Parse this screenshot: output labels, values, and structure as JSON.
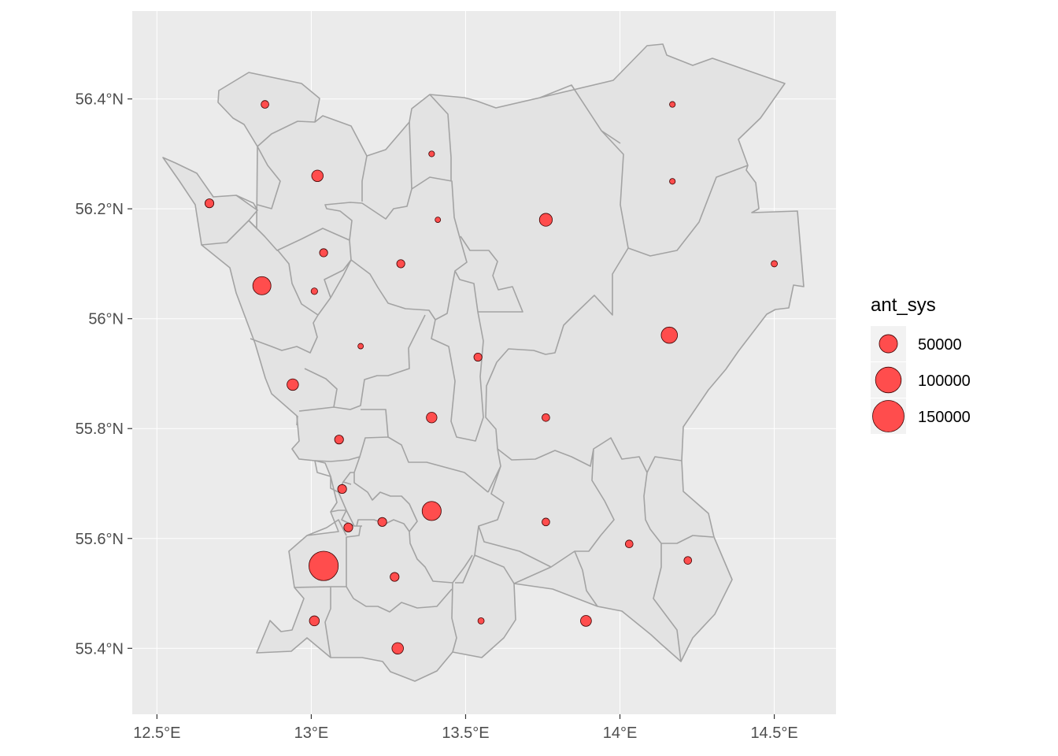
{
  "chart_data": {
    "type": "scatter",
    "map": true,
    "title": "",
    "xlabel": "",
    "ylabel": "",
    "xlim": [
      12.42,
      14.7
    ],
    "ylim": [
      55.28,
      56.56
    ],
    "grid": true,
    "legend_placement": "right",
    "x_ticks": [
      {
        "value": 12.5,
        "label": "12.5°E"
      },
      {
        "value": 13.0,
        "label": "13°E"
      },
      {
        "value": 13.5,
        "label": "13.5°E"
      },
      {
        "value": 14.0,
        "label": "14°E"
      },
      {
        "value": 14.5,
        "label": "14.5°E"
      }
    ],
    "y_ticks": [
      {
        "value": 55.4,
        "label": "55.4°N"
      },
      {
        "value": 55.6,
        "label": "55.6°N"
      },
      {
        "value": 55.8,
        "label": "55.8°N"
      },
      {
        "value": 56.0,
        "label": "56°N"
      },
      {
        "value": 56.2,
        "label": "56.2°N"
      },
      {
        "value": 56.4,
        "label": "56.4°N"
      }
    ],
    "legend": {
      "title": "ant_sys",
      "entries": [
        {
          "value": 50000,
          "label": "50000"
        },
        {
          "value": 100000,
          "label": "100000"
        },
        {
          "value": 150000,
          "label": "150000"
        }
      ]
    },
    "colors": {
      "panel_bg": "#ebebeb",
      "grid": "#ffffff",
      "region_fill": "#e3e3e3",
      "region_stroke": "#a3a3a3",
      "point_fill": "#ff4d4d",
      "point_stroke": "#3d0000",
      "axis_text": "#4d4d4d",
      "legend_key_bg": "#f2f2f2"
    },
    "points": [
      {
        "lon": 12.85,
        "lat": 56.39,
        "ant_sys": 9000
      },
      {
        "lon": 13.02,
        "lat": 56.26,
        "ant_sys": 20000
      },
      {
        "lon": 12.67,
        "lat": 56.21,
        "ant_sys": 12000
      },
      {
        "lon": 13.39,
        "lat": 56.3,
        "ant_sys": 5000
      },
      {
        "lon": 13.41,
        "lat": 56.18,
        "ant_sys": 2500
      },
      {
        "lon": 13.76,
        "lat": 56.18,
        "ant_sys": 25000
      },
      {
        "lon": 14.17,
        "lat": 56.39,
        "ant_sys": 5000
      },
      {
        "lon": 14.17,
        "lat": 56.25,
        "ant_sys": 5000
      },
      {
        "lon": 14.5,
        "lat": 56.1,
        "ant_sys": 6000
      },
      {
        "lon": 12.84,
        "lat": 56.06,
        "ant_sys": 50000
      },
      {
        "lon": 13.04,
        "lat": 56.12,
        "ant_sys": 10000
      },
      {
        "lon": 13.01,
        "lat": 56.05,
        "ant_sys": 6500
      },
      {
        "lon": 13.29,
        "lat": 56.1,
        "ant_sys": 10000
      },
      {
        "lon": 14.16,
        "lat": 55.97,
        "ant_sys": 40000
      },
      {
        "lon": 13.16,
        "lat": 55.95,
        "ant_sys": 4500
      },
      {
        "lon": 13.54,
        "lat": 55.93,
        "ant_sys": 10000
      },
      {
        "lon": 12.94,
        "lat": 55.88,
        "ant_sys": 20000
      },
      {
        "lon": 13.39,
        "lat": 55.82,
        "ant_sys": 17000
      },
      {
        "lon": 13.76,
        "lat": 55.82,
        "ant_sys": 9000
      },
      {
        "lon": 13.09,
        "lat": 55.78,
        "ant_sys": 12000
      },
      {
        "lon": 13.1,
        "lat": 55.69,
        "ant_sys": 12000
      },
      {
        "lon": 13.39,
        "lat": 55.65,
        "ant_sys": 55000
      },
      {
        "lon": 13.23,
        "lat": 55.63,
        "ant_sys": 12000
      },
      {
        "lon": 13.12,
        "lat": 55.62,
        "ant_sys": 12000
      },
      {
        "lon": 13.76,
        "lat": 55.63,
        "ant_sys": 9000
      },
      {
        "lon": 14.03,
        "lat": 55.59,
        "ant_sys": 9000
      },
      {
        "lon": 14.22,
        "lat": 55.56,
        "ant_sys": 9000
      },
      {
        "lon": 13.04,
        "lat": 55.55,
        "ant_sys": 130000
      },
      {
        "lon": 13.27,
        "lat": 55.53,
        "ant_sys": 12000
      },
      {
        "lon": 13.01,
        "lat": 55.45,
        "ant_sys": 15000
      },
      {
        "lon": 13.55,
        "lat": 55.45,
        "ant_sys": 6000
      },
      {
        "lon": 13.89,
        "lat": 55.45,
        "ant_sys": 18000
      },
      {
        "lon": 13.28,
        "lat": 55.4,
        "ant_sys": 20000
      }
    ]
  }
}
